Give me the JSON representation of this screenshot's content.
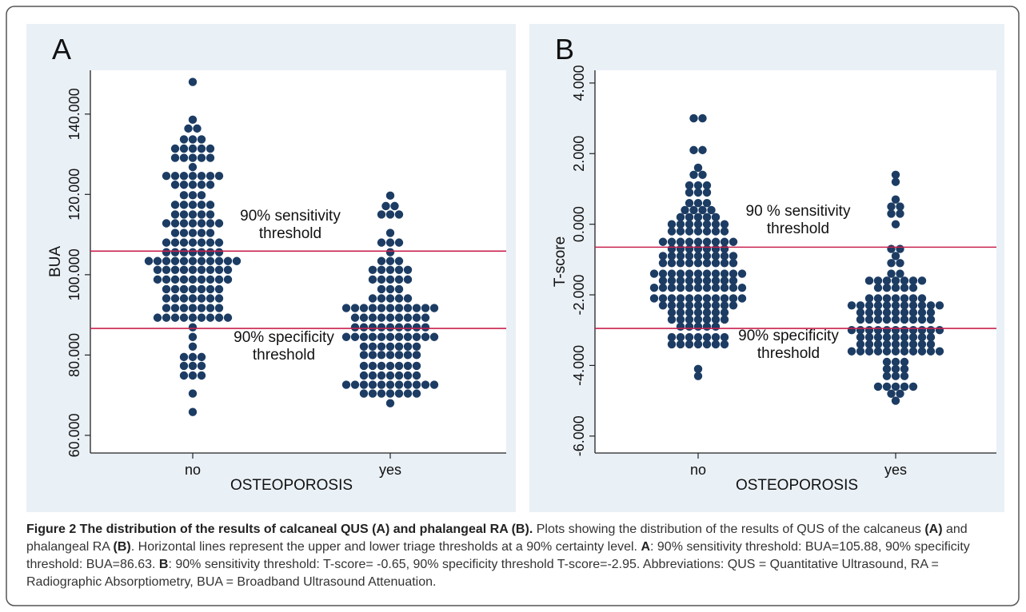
{
  "chart_data": [
    {
      "type": "dotplot",
      "title": "A",
      "y_label": "BUA",
      "x_label": "OSTEOPOROSIS",
      "categories": [
        "no",
        "yes"
      ],
      "color": "#1c3c63",
      "values": [
        [
          148,
          138.6,
          136.4,
          136.4,
          133.7,
          133.7,
          133.7,
          131.4,
          131.4,
          131.4,
          131.4,
          131.4,
          129.1,
          129.1,
          129.1,
          129.1,
          129.1,
          126.8,
          124.6,
          124.6,
          124.6,
          124.6,
          124.6,
          124.6,
          124.6,
          122.4,
          122.4,
          122.4,
          122.4,
          122.4,
          119.8,
          119.8,
          119.8,
          117.4,
          117.4,
          117.4,
          117.4,
          117.4,
          115,
          115,
          115,
          115,
          115,
          112.8,
          112.8,
          112.8,
          112.8,
          112.8,
          112.8,
          112.8,
          110.4,
          110.4,
          110.4,
          110.4,
          110.4,
          108,
          108,
          108,
          108,
          108,
          108,
          108,
          105.6,
          105.6,
          105.6,
          105.6,
          105.6,
          105.6,
          105.6,
          103.4,
          103.4,
          103.4,
          103.4,
          103.4,
          103.4,
          103.4,
          103.4,
          103.4,
          103.4,
          103.4,
          101.2,
          101.2,
          101.2,
          101.2,
          101.2,
          101.2,
          101.2,
          101.2,
          101.2,
          98.8,
          98.8,
          98.8,
          98.8,
          98.8,
          98.8,
          98.8,
          98.8,
          98.8,
          96.4,
          96.4,
          96.4,
          96.4,
          96.4,
          96.4,
          96.4,
          94.1,
          94.1,
          94.1,
          94.1,
          94.1,
          94.1,
          94.1,
          91.7,
          91.7,
          91.7,
          91.7,
          91.7,
          91.7,
          91.7,
          89.3,
          89.3,
          89.3,
          89.3,
          89.3,
          89.3,
          89.3,
          89.3,
          89.3,
          86.9,
          84.5,
          82.1,
          79.5,
          79.5,
          79.5,
          77.3,
          77.3,
          77.3,
          74.9,
          74.9,
          74.9,
          70.4,
          65.8
        ],
        [
          119.7,
          117.1,
          117.1,
          115,
          115,
          115,
          110.4,
          108,
          108,
          108,
          105.6,
          103.4,
          103.4,
          103.4,
          101.2,
          101.2,
          101.2,
          101.2,
          101.2,
          98.8,
          98.8,
          98.8,
          98.8,
          98.8,
          96.4,
          96.4,
          96.4,
          94.1,
          94.1,
          94.1,
          94.1,
          94.1,
          91.7,
          91.7,
          91.7,
          91.7,
          91.7,
          91.7,
          91.7,
          91.7,
          91.7,
          91.7,
          91.7,
          89.3,
          89.3,
          89.3,
          89.3,
          89.3,
          89.3,
          89.3,
          89.3,
          89.3,
          86.9,
          86.9,
          86.9,
          86.9,
          86.9,
          86.9,
          86.9,
          86.9,
          86.9,
          84.5,
          84.5,
          84.5,
          84.5,
          84.5,
          84.5,
          84.5,
          84.5,
          84.5,
          84.5,
          84.5,
          82.1,
          82.1,
          82.1,
          82.1,
          82.1,
          82.1,
          82.1,
          80,
          80,
          80,
          80,
          80,
          80,
          80,
          77.3,
          77.3,
          77.3,
          77.3,
          77.3,
          77.3,
          77.3,
          74.9,
          74.9,
          74.9,
          74.9,
          74.9,
          74.9,
          74.9,
          72.6,
          72.6,
          72.6,
          72.6,
          72.6,
          72.6,
          72.6,
          72.6,
          72.6,
          72.6,
          72.6,
          70.4,
          70.4,
          70.4,
          70.4,
          70.4,
          70.4,
          70.4,
          68
        ]
      ],
      "ylim": [
        55.6,
        150.9
      ],
      "yticks": [
        {
          "value": 60,
          "label": "60.000"
        },
        {
          "value": 80,
          "label": "80.000"
        },
        {
          "value": 100,
          "label": "100.000"
        },
        {
          "value": 120,
          "label": "120.000"
        },
        {
          "value": 140,
          "label": "140.000"
        }
      ],
      "thresholds": {
        "values": [
          105.88,
          86.63
        ],
        "color": "#c8214e"
      },
      "annotations": [
        [
          "90% sensitivity",
          "threshold"
        ],
        [
          "90% specificity",
          "threshold"
        ]
      ]
    },
    {
      "type": "dotplot",
      "title": "B",
      "y_label": "T-score",
      "x_label": "OSTEOPOROSIS",
      "categories": [
        "no",
        "yes"
      ],
      "color": "#1c3c63",
      "values": [
        [
          3.0,
          3.0,
          2.1,
          2.1,
          1.6,
          1.4,
          1.4,
          1.1,
          1.1,
          1.1,
          0.9,
          0.9,
          0.9,
          0.6,
          0.6,
          0.6,
          0.4,
          0.4,
          0.4,
          0.4,
          0.2,
          0.2,
          0.2,
          0.2,
          0.2,
          0.0,
          0.0,
          0.0,
          0.0,
          0.0,
          0.0,
          0.0,
          -0.2,
          -0.2,
          -0.2,
          -0.2,
          -0.2,
          -0.2,
          -0.2,
          -0.5,
          -0.5,
          -0.5,
          -0.5,
          -0.5,
          -0.5,
          -0.5,
          -0.5,
          -0.5,
          -0.7,
          -0.7,
          -0.7,
          -0.7,
          -0.7,
          -0.7,
          -0.7,
          -0.9,
          -0.9,
          -0.9,
          -0.9,
          -0.9,
          -0.9,
          -0.9,
          -0.9,
          -0.9,
          -1.1,
          -1.1,
          -1.1,
          -1.1,
          -1.1,
          -1.1,
          -1.1,
          -1.1,
          -1.1,
          -1.4,
          -1.4,
          -1.4,
          -1.4,
          -1.4,
          -1.4,
          -1.4,
          -1.4,
          -1.4,
          -1.4,
          -1.4,
          -1.6,
          -1.6,
          -1.6,
          -1.6,
          -1.6,
          -1.6,
          -1.6,
          -1.6,
          -1.6,
          -1.8,
          -1.8,
          -1.8,
          -1.8,
          -1.8,
          -1.8,
          -1.8,
          -1.8,
          -1.8,
          -1.8,
          -1.8,
          -2.1,
          -2.1,
          -2.1,
          -2.1,
          -2.1,
          -2.1,
          -2.1,
          -2.1,
          -2.1,
          -2.1,
          -2.1,
          -2.3,
          -2.3,
          -2.3,
          -2.3,
          -2.3,
          -2.3,
          -2.3,
          -2.3,
          -2.3,
          -2.5,
          -2.5,
          -2.5,
          -2.5,
          -2.5,
          -2.5,
          -2.5,
          -2.7,
          -2.7,
          -2.7,
          -2.7,
          -2.7,
          -2.7,
          -2.7,
          -2.9,
          -2.9,
          -2.9,
          -2.9,
          -2.9,
          -3.2,
          -3.2,
          -3.2,
          -3.2,
          -3.2,
          -3.2,
          -3.2,
          -3.4,
          -3.4,
          -3.4,
          -3.4,
          -3.4,
          -3.4,
          -3.4,
          -4.1,
          -4.3
        ],
        [
          1.4,
          1.2,
          0.7,
          0.5,
          0.5,
          0.3,
          0.3,
          0.0,
          -0.7,
          -0.7,
          -0.9,
          -1.1,
          -1.1,
          -1.4,
          -1.4,
          -1.6,
          -1.6,
          -1.6,
          -1.6,
          -1.6,
          -1.6,
          -1.6,
          -1.8,
          -1.8,
          -1.8,
          -1.8,
          -1.8,
          -2.1,
          -2.1,
          -2.1,
          -2.1,
          -2.1,
          -2.1,
          -2.1,
          -2.3,
          -2.3,
          -2.3,
          -2.3,
          -2.3,
          -2.3,
          -2.3,
          -2.3,
          -2.3,
          -2.3,
          -2.3,
          -2.5,
          -2.5,
          -2.5,
          -2.5,
          -2.5,
          -2.5,
          -2.5,
          -2.5,
          -2.5,
          -2.7,
          -2.7,
          -2.7,
          -2.7,
          -2.7,
          -2.7,
          -2.7,
          -2.7,
          -2.7,
          -3.0,
          -3.0,
          -3.0,
          -3.0,
          -3.0,
          -3.0,
          -3.0,
          -3.0,
          -3.0,
          -3.0,
          -3.0,
          -3.2,
          -3.2,
          -3.2,
          -3.2,
          -3.2,
          -3.2,
          -3.2,
          -3.2,
          -3.2,
          -3.4,
          -3.4,
          -3.4,
          -3.4,
          -3.4,
          -3.4,
          -3.4,
          -3.4,
          -3.4,
          -3.6,
          -3.6,
          -3.6,
          -3.6,
          -3.6,
          -3.6,
          -3.6,
          -3.6,
          -3.6,
          -3.6,
          -3.6,
          -3.9,
          -3.9,
          -3.9,
          -4.1,
          -4.1,
          -4.1,
          -4.3,
          -4.3,
          -4.3,
          -4.6,
          -4.6,
          -4.6,
          -4.6,
          -4.6,
          -4.8,
          -4.8,
          -5.0
        ]
      ],
      "ylim": [
        -6.48,
        4.36
      ],
      "yticks": [
        {
          "value": -6,
          "label": "-6.000"
        },
        {
          "value": -4,
          "label": "-4.000"
        },
        {
          "value": -2,
          "label": "-2.000"
        },
        {
          "value": 0,
          "label": "0.000"
        },
        {
          "value": 2,
          "label": "2.000"
        },
        {
          "value": 4,
          "label": "4.000"
        }
      ],
      "thresholds": {
        "values": [
          -0.65,
          -2.95
        ],
        "color": "#c8214e"
      },
      "annotations": [
        [
          "90 % sensitivity",
          "threshold"
        ],
        [
          "90% specificity",
          "threshold"
        ]
      ]
    }
  ],
  "caption": [
    {
      "text": "Figure 2 The distribution of the results of calcaneal QUS (A) and phalangeal RA (B).",
      "bold": true
    },
    {
      "text": " Plots showing the distribution of the results of QUS of the calcaneus ",
      "bold": false
    },
    {
      "text": "(A)",
      "bold": true
    },
    {
      "text": " and phalangeal RA ",
      "bold": false
    },
    {
      "text": "(B)",
      "bold": true
    },
    {
      "text": ". Horizontal lines represent the upper and lower triage thresholds at a 90% certainty level. ",
      "bold": false
    },
    {
      "text": "A",
      "bold": true
    },
    {
      "text": ": 90% sensitivity threshold: BUA=105.88, 90% specificity threshold: BUA=86.63. ",
      "bold": false
    },
    {
      "text": "B",
      "bold": true
    },
    {
      "text": ": 90% sensitivity threshold: T-score= -0.65, 90% specificity threshold T-score=-2.95. Abbreviations: QUS = Quantitative Ultrasound, RA = Radiographic Absorptiometry, BUA = Broadband Ultrasound Attenuation.",
      "bold": false
    }
  ]
}
